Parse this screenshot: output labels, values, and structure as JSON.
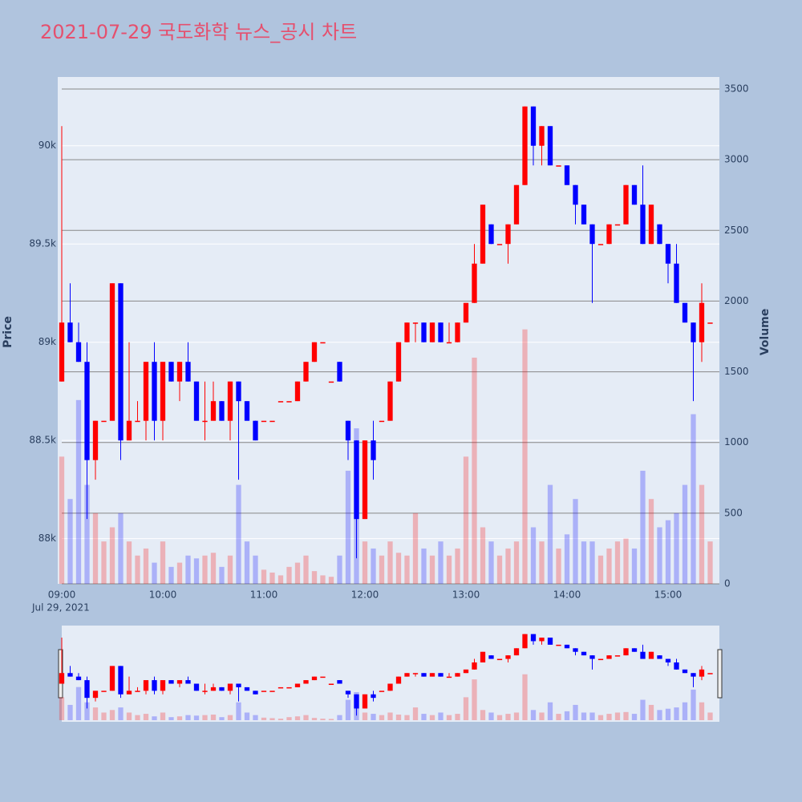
{
  "chart_data": {
    "type": "candlestick",
    "title": "2021-07-29 국도화학 뉴스_공시 차트",
    "y_title": "Price",
    "y2_title": "Volume",
    "x_date_label": "Jul 29, 2021",
    "increasing_color": "#ff0000",
    "decreasing_color": "#0000ff",
    "x": [
      "09:00",
      "09:05",
      "09:10",
      "09:15",
      "09:20",
      "09:25",
      "09:30",
      "09:35",
      "09:40",
      "09:45",
      "09:50",
      "09:55",
      "10:00",
      "10:05",
      "10:10",
      "10:15",
      "10:20",
      "10:25",
      "10:30",
      "10:35",
      "10:40",
      "10:45",
      "10:50",
      "10:55",
      "11:00",
      "11:05",
      "11:10",
      "11:15",
      "11:20",
      "11:25",
      "11:30",
      "11:35",
      "11:40",
      "11:45",
      "11:50",
      "11:55",
      "12:00",
      "12:05",
      "12:10",
      "12:15",
      "12:20",
      "12:25",
      "12:30",
      "12:35",
      "12:40",
      "12:45",
      "12:50",
      "12:55",
      "13:00",
      "13:05",
      "13:10",
      "13:15",
      "13:20",
      "13:25",
      "13:30",
      "13:35",
      "13:40",
      "13:45",
      "13:50",
      "13:55",
      "14:00",
      "14:05",
      "14:10",
      "14:15",
      "14:20",
      "14:25",
      "14:30",
      "14:35",
      "14:40",
      "14:45",
      "14:50",
      "14:55",
      "15:00",
      "15:05",
      "15:10",
      "15:15",
      "15:20",
      "15:25"
    ],
    "open": [
      88800,
      89100,
      89000,
      88900,
      88400,
      88600,
      88600,
      89300,
      88500,
      88600,
      88600,
      88900,
      88600,
      88900,
      88800,
      88900,
      88800,
      88600,
      88600,
      88700,
      88600,
      88800,
      88700,
      88600,
      88600,
      88600,
      88700,
      88700,
      88700,
      88800,
      88900,
      89000,
      88800,
      88900,
      88600,
      88500,
      88100,
      88500,
      88600,
      88600,
      88800,
      89000,
      89100,
      89100,
      89000,
      89100,
      89000,
      89000,
      89100,
      89200,
      89400,
      89600,
      89500,
      89500,
      89600,
      89800,
      90200,
      90000,
      90100,
      89900,
      89900,
      89800,
      89700,
      89600,
      89500,
      89500,
      89600,
      89600,
      89800,
      89700,
      89500,
      89600,
      89500,
      89400,
      89200,
      89100,
      89000,
      89100
    ],
    "high": [
      90100,
      89300,
      89100,
      89000,
      88600,
      88600,
      89300,
      89300,
      89000,
      88700,
      88900,
      89000,
      88900,
      88900,
      88900,
      89000,
      88800,
      88800,
      88800,
      88700,
      88800,
      88800,
      88700,
      88600,
      88600,
      88600,
      88700,
      88700,
      88800,
      88900,
      89000,
      89000,
      88800,
      88900,
      88600,
      88500,
      88500,
      88600,
      88600,
      88800,
      89000,
      89100,
      89100,
      89100,
      89100,
      89100,
      89100,
      89100,
      89200,
      89500,
      89700,
      89600,
      89500,
      89600,
      89800,
      90200,
      90200,
      90100,
      90100,
      89900,
      89900,
      89800,
      89700,
      89600,
      89500,
      89600,
      89600,
      89800,
      89800,
      89900,
      89700,
      89600,
      89500,
      89500,
      89200,
      89100,
      89300,
      89100
    ],
    "low": [
      88800,
      89000,
      88900,
      88100,
      88300,
      88600,
      88600,
      88400,
      88500,
      88600,
      88500,
      88500,
      88500,
      88800,
      88700,
      88800,
      88600,
      88500,
      88600,
      88600,
      88500,
      88300,
      88600,
      88500,
      88600,
      88600,
      88700,
      88700,
      88700,
      88800,
      88900,
      89000,
      88800,
      88800,
      88400,
      87900,
      88100,
      88300,
      88600,
      88600,
      88800,
      89000,
      89000,
      89000,
      89000,
      89000,
      89000,
      89000,
      89100,
      89200,
      89400,
      89500,
      89500,
      89400,
      89600,
      89800,
      89900,
      89900,
      89900,
      89900,
      89800,
      89600,
      89600,
      89200,
      89500,
      89500,
      89600,
      89600,
      89700,
      89500,
      89500,
      89500,
      89300,
      89200,
      89100,
      88700,
      88900,
      89100
    ],
    "close": [
      89100,
      89000,
      88900,
      88400,
      88600,
      88600,
      89300,
      88500,
      88600,
      88600,
      88900,
      88600,
      88900,
      88800,
      88900,
      88800,
      88600,
      88600,
      88700,
      88600,
      88800,
      88700,
      88600,
      88500,
      88600,
      88600,
      88700,
      88700,
      88800,
      88900,
      89000,
      89000,
      88800,
      88800,
      88500,
      88100,
      88500,
      88400,
      88600,
      88800,
      89000,
      89100,
      89100,
      89000,
      89100,
      89000,
      89000,
      89100,
      89200,
      89400,
      89700,
      89500,
      89500,
      89600,
      89800,
      90200,
      90000,
      90100,
      89900,
      89900,
      89800,
      89700,
      89600,
      89500,
      89500,
      89600,
      89600,
      89800,
      89700,
      89500,
      89700,
      89500,
      89400,
      89200,
      89100,
      89000,
      89200,
      89100
    ],
    "volume": [
      900,
      600,
      1300,
      700,
      500,
      300,
      400,
      500,
      300,
      200,
      250,
      150,
      300,
      120,
      150,
      200,
      180,
      200,
      220,
      120,
      200,
      700,
      300,
      200,
      100,
      80,
      60,
      120,
      150,
      200,
      90,
      60,
      50,
      200,
      800,
      1100,
      300,
      250,
      200,
      300,
      220,
      200,
      500,
      250,
      200,
      300,
      200,
      250,
      900,
      1600,
      400,
      300,
      200,
      250,
      300,
      1800,
      400,
      300,
      700,
      250,
      350,
      600,
      300,
      300,
      200,
      250,
      300,
      320,
      250,
      800,
      600,
      400,
      450,
      500,
      700,
      1200,
      700,
      300
    ],
    "ylim": [
      87770,
      90350
    ],
    "yticks": [
      {
        "value": 88000,
        "label": "88k"
      },
      {
        "value": 88500,
        "label": "88.5k"
      },
      {
        "value": 89000,
        "label": "89k"
      },
      {
        "value": 89500,
        "label": "89.5k"
      },
      {
        "value": 90000,
        "label": "90k"
      }
    ],
    "y2lim": [
      0,
      3585
    ],
    "y2ticks": [
      0,
      500,
      1000,
      1500,
      2000,
      2500,
      3000,
      3500
    ],
    "xticks": [
      "09:00",
      "10:00",
      "11:00",
      "12:00",
      "13:00",
      "14:00",
      "15:00"
    ]
  }
}
